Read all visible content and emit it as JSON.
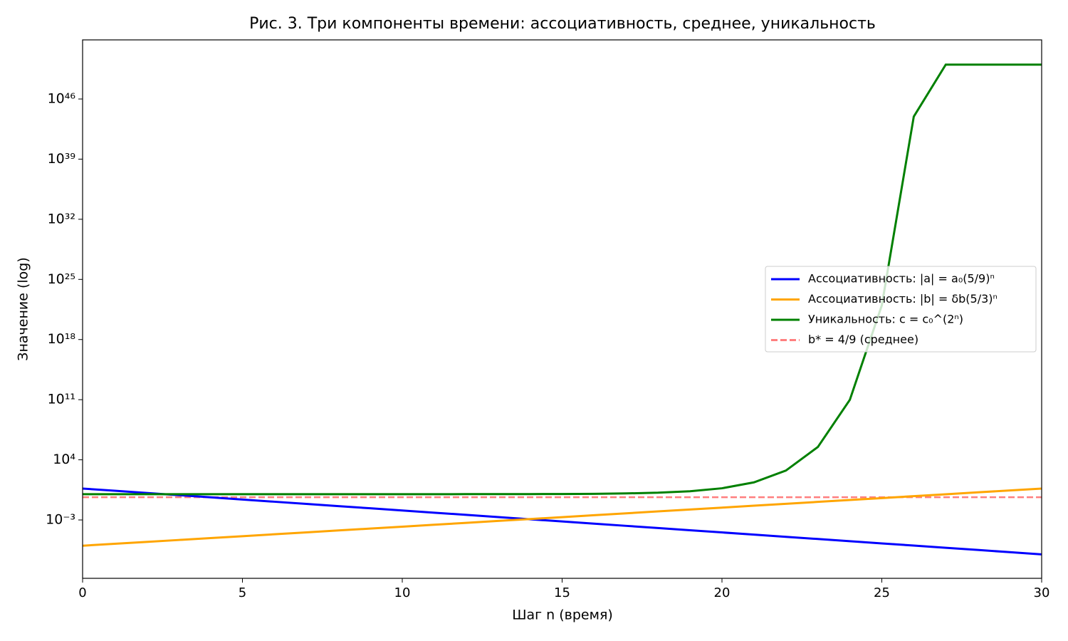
{
  "chart_data": {
    "type": "line",
    "title": "Рис. 3. Три компоненты времени: ассоциативность, среднее, уникальность",
    "xlabel": "Шаг n (время)",
    "ylabel": "Значение (log)",
    "yscale": "log",
    "legend": "center right",
    "x": [
      0,
      1,
      2,
      3,
      4,
      5,
      6,
      7,
      8,
      9,
      10,
      11,
      12,
      13,
      14,
      15,
      16,
      17,
      18,
      19,
      20,
      21,
      22,
      23,
      24,
      25,
      26,
      27,
      28,
      29,
      30
    ],
    "series": [
      {
        "name": "Ассоциативность: |a| = a₀(5/9)ⁿ",
        "color": "#0000ff",
        "values": [
          4.5,
          2.5,
          1.389,
          0.7716,
          0.4287,
          0.2381,
          0.1323,
          0.0735,
          0.04083,
          0.02268,
          0.0126,
          0.007,
          0.003889,
          0.002161,
          0.0012,
          0.0006668,
          0.0003704,
          0.0002058,
          0.0001143,
          6.351e-05,
          3.528e-05,
          1.96e-05,
          1.089e-05,
          6.05e-06,
          3.361e-06,
          1.867e-06,
          1.037e-06,
          5.763e-07,
          3.202e-07,
          1.779e-07,
          9.88e-08
        ]
      },
      {
        "name": "Ассоциативность: |b| = δb(5/3)ⁿ",
        "color": "#ffa500",
        "values": [
          1e-06,
          1.667e-06,
          2.778e-06,
          4.63e-06,
          7.716e-06,
          1.286e-05,
          2.143e-05,
          3.572e-05,
          5.954e-05,
          9.923e-05,
          0.0001654,
          0.0002756,
          0.0004594,
          0.0007656,
          0.001276,
          0.002127,
          0.003545,
          0.005908,
          0.009846,
          0.01641,
          0.02735,
          0.04558,
          0.07597,
          0.1266,
          0.211,
          0.3517,
          0.5862,
          0.977,
          1.628,
          2.714,
          4.523
        ]
      },
      {
        "name": "Уникальность: c = c₀^(2ⁿ)",
        "color": "#008000",
        "values": [
          1,
          1,
          1,
          1,
          1,
          1,
          1,
          1,
          1.0004,
          1.0008,
          1.0015,
          1.0031,
          1.0062,
          1.0124,
          1.025,
          1.0506,
          1.1038,
          1.2184,
          1.4846,
          2.204,
          4.86,
          23.63,
          558.5,
          312000.0,
          97500000000.0,
          9.5e+21,
          9e+43,
          1e+50,
          1e+50,
          1e+50,
          1e+50
        ]
      }
    ],
    "hlines": [
      {
        "name": "b* = 4/9 (среднее)",
        "color": "#ff7f7f",
        "value": 0.4444,
        "style": "dashed"
      }
    ],
    "xlim": [
      0,
      30
    ],
    "xticks": [
      0,
      5,
      10,
      15,
      20,
      25,
      30
    ],
    "ylim": [
      1.6e-10,
      7.6e+52
    ],
    "yticks": [
      {
        "value": 0.001,
        "label": "10⁻³"
      },
      {
        "value": 10000.0,
        "label": "10⁴"
      },
      {
        "value": 100000000000.0,
        "label": "10¹¹"
      },
      {
        "value": 1e+18,
        "label": "10¹⁸"
      },
      {
        "value": 1e+25,
        "label": "10²⁵"
      },
      {
        "value": 1e+32,
        "label": "10³²"
      },
      {
        "value": 1e+39,
        "label": "10³⁹"
      },
      {
        "value": 1e+46,
        "label": "10⁴⁶"
      }
    ]
  }
}
